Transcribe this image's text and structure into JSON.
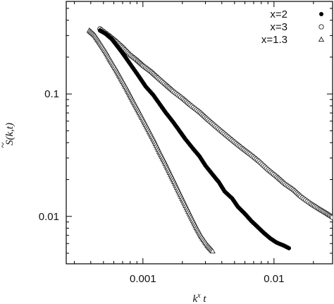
{
  "chart_data": {
    "type": "scatter",
    "xscale": "log",
    "yscale": "log",
    "xlim": [
      0.00026,
      0.028
    ],
    "ylim": [
      0.0041,
      0.57
    ],
    "xlabel": "k^x t",
    "ylabel": "S̃(k,t)",
    "x_ticks": [
      {
        "value": 0.001,
        "label": "0.001"
      },
      {
        "value": 0.01,
        "label": "0.01"
      }
    ],
    "y_ticks": [
      {
        "value": 0.1,
        "label": "0.1"
      },
      {
        "value": 0.01,
        "label": "0.01"
      }
    ],
    "legend_position": "top-right",
    "grid": false,
    "series": [
      {
        "name": "x=2",
        "marker": "filled-circle",
        "color": "#000000",
        "points": [
          [
            0.00047,
            0.33
          ],
          [
            0.00052,
            0.31
          ],
          [
            0.00058,
            0.28
          ],
          [
            0.00063,
            0.25
          ],
          [
            0.00069,
            0.22
          ],
          [
            0.00076,
            0.19
          ],
          [
            0.00085,
            0.16
          ],
          [
            0.00095,
            0.135
          ],
          [
            0.00105,
            0.115
          ],
          [
            0.0012,
            0.098
          ],
          [
            0.00135,
            0.082
          ],
          [
            0.0015,
            0.07
          ],
          [
            0.0017,
            0.059
          ],
          [
            0.0019,
            0.05
          ],
          [
            0.0021,
            0.043
          ],
          [
            0.0024,
            0.036
          ],
          [
            0.0027,
            0.031
          ],
          [
            0.003,
            0.026
          ],
          [
            0.0034,
            0.022
          ],
          [
            0.0038,
            0.019
          ],
          [
            0.0042,
            0.016
          ],
          [
            0.0048,
            0.014
          ],
          [
            0.0053,
            0.012
          ],
          [
            0.006,
            0.0105
          ],
          [
            0.0067,
            0.0092
          ],
          [
            0.0075,
            0.0082
          ],
          [
            0.0084,
            0.0073
          ],
          [
            0.0094,
            0.0066
          ],
          [
            0.0105,
            0.0061
          ],
          [
            0.0118,
            0.0058
          ],
          [
            0.013,
            0.0055
          ]
        ]
      },
      {
        "name": "x=3",
        "marker": "open-circle",
        "color": "#000000",
        "points": [
          [
            0.00047,
            0.34
          ],
          [
            0.00055,
            0.3
          ],
          [
            0.00062,
            0.27
          ],
          [
            0.0007,
            0.24
          ],
          [
            0.00079,
            0.21
          ],
          [
            0.0009,
            0.188
          ],
          [
            0.001,
            0.17
          ],
          [
            0.00115,
            0.152
          ],
          [
            0.0013,
            0.135
          ],
          [
            0.0015,
            0.118
          ],
          [
            0.0017,
            0.105
          ],
          [
            0.002,
            0.092
          ],
          [
            0.0023,
            0.081
          ],
          [
            0.0027,
            0.071
          ],
          [
            0.0031,
            0.062
          ],
          [
            0.0036,
            0.054
          ],
          [
            0.0042,
            0.047
          ],
          [
            0.0049,
            0.041
          ],
          [
            0.0057,
            0.036
          ],
          [
            0.0066,
            0.032
          ],
          [
            0.0077,
            0.028
          ],
          [
            0.009,
            0.024
          ],
          [
            0.0105,
            0.021
          ],
          [
            0.012,
            0.0185
          ],
          [
            0.014,
            0.0165
          ],
          [
            0.016,
            0.0145
          ],
          [
            0.019,
            0.0127
          ],
          [
            0.022,
            0.0115
          ],
          [
            0.025,
            0.0106
          ],
          [
            0.028,
            0.0098
          ]
        ]
      },
      {
        "name": "x=1.3",
        "marker": "open-triangle",
        "color": "#000000",
        "points": [
          [
            0.00039,
            0.33
          ],
          [
            0.00043,
            0.3
          ],
          [
            0.00047,
            0.26
          ],
          [
            0.00052,
            0.22
          ],
          [
            0.00057,
            0.185
          ],
          [
            0.00063,
            0.155
          ],
          [
            0.00069,
            0.13
          ],
          [
            0.00076,
            0.108
          ],
          [
            0.00083,
            0.09
          ],
          [
            0.00091,
            0.075
          ],
          [
            0.001,
            0.062
          ],
          [
            0.0011,
            0.051
          ],
          [
            0.00121,
            0.042
          ],
          [
            0.00133,
            0.034
          ],
          [
            0.00146,
            0.028
          ],
          [
            0.0016,
            0.0228
          ],
          [
            0.00176,
            0.0185
          ],
          [
            0.00193,
            0.015
          ],
          [
            0.00212,
            0.0122
          ],
          [
            0.00233,
            0.0099
          ],
          [
            0.00256,
            0.0081
          ],
          [
            0.0028,
            0.0068
          ],
          [
            0.0031,
            0.0058
          ],
          [
            0.0034,
            0.0052
          ]
        ]
      }
    ]
  }
}
